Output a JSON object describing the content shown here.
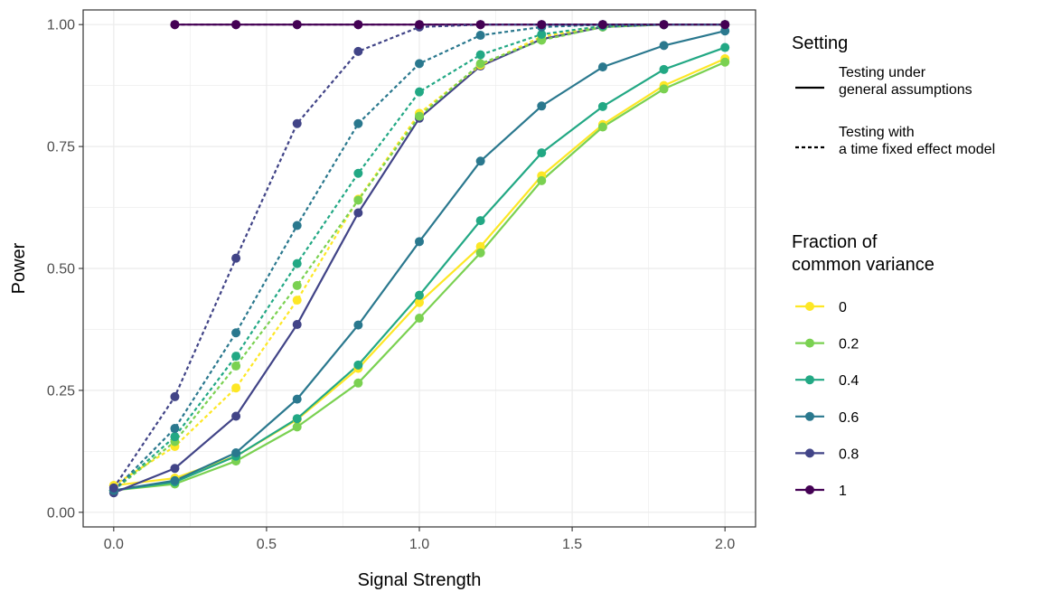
{
  "chart_data": {
    "type": "line",
    "xlabel": "Signal Strength",
    "ylabel": "Power",
    "xlim": [
      -0.1,
      2.1
    ],
    "ylim": [
      -0.03,
      1.03
    ],
    "x_ticks": [
      "0.0",
      "0.5",
      "1.0",
      "1.5",
      "2.0"
    ],
    "y_ticks": [
      "0.00",
      "0.25",
      "0.50",
      "0.75",
      "1.00"
    ],
    "grid": true,
    "legend_placement": "right",
    "x": [
      0,
      0.2,
      0.4,
      0.6,
      0.8,
      1.0,
      1.2,
      1.4,
      1.6,
      1.8,
      2.0
    ],
    "legend_setting": {
      "title": "Setting",
      "items": [
        {
          "line": "solid",
          "label_lines": [
            "Testing under",
            "general assumptions"
          ]
        },
        {
          "line": "dashed",
          "label_lines": [
            "Testing with",
            "a time fixed effect model"
          ]
        }
      ]
    },
    "legend_fraction": {
      "title_lines": [
        "Fraction of",
        "common variance"
      ],
      "items": [
        {
          "label": "0",
          "color": "#FDE725"
        },
        {
          "label": "0.2",
          "color": "#7AD151"
        },
        {
          "label": "0.4",
          "color": "#22A884"
        },
        {
          "label": "0.6",
          "color": "#2A788E"
        },
        {
          "label": "0.8",
          "color": "#414487"
        },
        {
          "label": "1",
          "color": "#440154"
        }
      ]
    },
    "series": [
      {
        "fraction": "0",
        "setting": "general",
        "color": "#FDE725",
        "values": [
          0.055,
          0.07,
          0.115,
          0.19,
          0.295,
          0.43,
          0.545,
          0.69,
          0.795,
          0.875,
          0.93
        ]
      },
      {
        "fraction": "0.2",
        "setting": "general",
        "color": "#7AD151",
        "values": [
          0.045,
          0.058,
          0.105,
          0.175,
          0.265,
          0.398,
          0.532,
          0.68,
          0.79,
          0.868,
          0.923
        ]
      },
      {
        "fraction": "0.4",
        "setting": "general",
        "color": "#22A884",
        "values": [
          0.045,
          0.062,
          0.115,
          0.192,
          0.302,
          0.445,
          0.598,
          0.737,
          0.832,
          0.908,
          0.953
        ]
      },
      {
        "fraction": "0.6",
        "setting": "general",
        "color": "#2A788E",
        "values": [
          0.045,
          0.065,
          0.122,
          0.232,
          0.384,
          0.555,
          0.72,
          0.833,
          0.913,
          0.957,
          0.987
        ]
      },
      {
        "fraction": "0.8",
        "setting": "general",
        "color": "#414487",
        "values": [
          0.04,
          0.09,
          0.197,
          0.385,
          0.614,
          0.808,
          0.915,
          0.97,
          0.995,
          1.0,
          1.0
        ]
      },
      {
        "fraction": "1",
        "setting": "general",
        "color": "#440154",
        "values": [
          null,
          1.0,
          1.0,
          1.0,
          1.0,
          1.0,
          1.0,
          1.0,
          1.0,
          1.0,
          1.0
        ]
      },
      {
        "fraction": "0",
        "setting": "fixed-effect",
        "color": "#FDE725",
        "values": [
          0.055,
          0.135,
          0.255,
          0.435,
          0.642,
          0.818,
          0.917,
          0.975,
          0.997,
          1.0,
          1.0
        ]
      },
      {
        "fraction": "0.2",
        "setting": "fixed-effect",
        "color": "#7AD151",
        "values": [
          0.045,
          0.145,
          0.3,
          0.465,
          0.64,
          0.812,
          0.92,
          0.968,
          0.995,
          1.0,
          1.0
        ]
      },
      {
        "fraction": "0.4",
        "setting": "fixed-effect",
        "color": "#22A884",
        "values": [
          0.045,
          0.155,
          0.32,
          0.51,
          0.695,
          0.862,
          0.938,
          0.98,
          0.997,
          1.0,
          1.0
        ]
      },
      {
        "fraction": "0.6",
        "setting": "fixed-effect",
        "color": "#2A788E",
        "values": [
          0.045,
          0.172,
          0.368,
          0.588,
          0.797,
          0.92,
          0.978,
          0.995,
          1.0,
          1.0,
          1.0
        ]
      },
      {
        "fraction": "0.8",
        "setting": "fixed-effect",
        "color": "#414487",
        "values": [
          0.05,
          0.237,
          0.521,
          0.797,
          0.945,
          0.995,
          1.0,
          1.0,
          1.0,
          1.0,
          1.0
        ]
      },
      {
        "fraction": "1",
        "setting": "fixed-effect",
        "color": "#440154",
        "values": [
          null,
          1.0,
          1.0,
          1.0,
          1.0,
          1.0,
          1.0,
          1.0,
          1.0,
          1.0,
          1.0
        ]
      }
    ]
  }
}
